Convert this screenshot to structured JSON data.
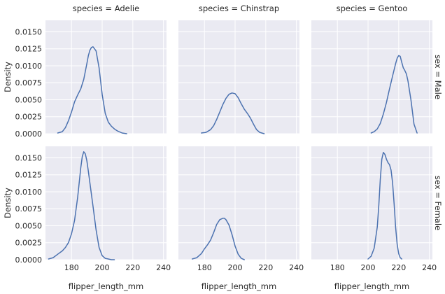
{
  "chart_data": {
    "type": "line",
    "kind": "kde facet grid",
    "xlabel": "flipper_length_mm",
    "ylabel": "Density",
    "xlim": [
      163,
      242
    ],
    "ylim": [
      0,
      0.0167
    ],
    "xticks": [
      180,
      200,
      220,
      240
    ],
    "yticks": [
      "0.0000",
      "0.0025",
      "0.0050",
      "0.0075",
      "0.0100",
      "0.0125",
      "0.0150"
    ],
    "grid": true,
    "col_titles": [
      "species = Adelie",
      "species = Chinstrap",
      "species = Gentoo"
    ],
    "row_titles": [
      "sex = Male",
      "sex = Female"
    ],
    "panels": [
      {
        "row": 0,
        "col": 0,
        "x": [
          171,
          174,
          176,
          178,
          180,
          182,
          184,
          186,
          188,
          190,
          191,
          192,
          193,
          194,
          196,
          198,
          200,
          202,
          204,
          206,
          208,
          210,
          213,
          216
        ],
        "y": [
          0.0001,
          0.0003,
          0.0009,
          0.0019,
          0.0032,
          0.0047,
          0.0057,
          0.0066,
          0.008,
          0.0103,
          0.0115,
          0.0123,
          0.0127,
          0.0128,
          0.0122,
          0.0097,
          0.0058,
          0.003,
          0.0017,
          0.0011,
          0.0007,
          0.0004,
          0.0001,
          0.0
        ]
      },
      {
        "row": 0,
        "col": 1,
        "x": [
          178,
          181,
          184,
          186,
          188,
          190,
          192,
          194,
          196,
          198,
          200,
          202,
          204,
          206,
          208,
          210,
          212,
          214,
          216,
          219
        ],
        "y": [
          0.0001,
          0.0002,
          0.0006,
          0.0012,
          0.0021,
          0.0032,
          0.0043,
          0.0052,
          0.0058,
          0.006,
          0.0059,
          0.0053,
          0.0044,
          0.0036,
          0.003,
          0.0023,
          0.0014,
          0.0006,
          0.0002,
          0.0
        ]
      },
      {
        "row": 0,
        "col": 2,
        "x": [
          202,
          204,
          206,
          208,
          210,
          212,
          214,
          216,
          218,
          219,
          220,
          221,
          222,
          223,
          224,
          225,
          226,
          228,
          230,
          232
        ],
        "y": [
          0.0001,
          0.0003,
          0.0007,
          0.0015,
          0.0029,
          0.0046,
          0.0066,
          0.0085,
          0.0103,
          0.0111,
          0.0115,
          0.0114,
          0.0105,
          0.0097,
          0.0093,
          0.0088,
          0.0078,
          0.005,
          0.0014,
          0.0001
        ]
      },
      {
        "row": 1,
        "col": 0,
        "x": [
          165,
          168,
          171,
          174,
          176,
          178,
          180,
          182,
          184,
          186,
          187,
          188,
          189,
          190,
          191,
          192,
          194,
          196,
          198,
          200,
          202,
          204,
          206,
          208
        ],
        "y": [
          0.0001,
          0.0003,
          0.0008,
          0.0013,
          0.0018,
          0.0025,
          0.0038,
          0.0058,
          0.0092,
          0.0135,
          0.0152,
          0.0159,
          0.0156,
          0.0146,
          0.013,
          0.0113,
          0.0079,
          0.0044,
          0.0018,
          0.0006,
          0.0002,
          0.0001,
          0.0,
          0.0
        ]
      },
      {
        "row": 1,
        "col": 1,
        "x": [
          172,
          175,
          178,
          180,
          182,
          184,
          186,
          188,
          190,
          192,
          193,
          194,
          196,
          198,
          200,
          202,
          204,
          206
        ],
        "y": [
          0.0001,
          0.0003,
          0.0009,
          0.0016,
          0.0022,
          0.0029,
          0.004,
          0.0052,
          0.0059,
          0.0061,
          0.0061,
          0.0059,
          0.0051,
          0.0037,
          0.002,
          0.0008,
          0.0002,
          0.0
        ]
      },
      {
        "row": 1,
        "col": 2,
        "x": [
          200,
          202,
          204,
          206,
          207,
          208,
          209,
          210,
          211,
          212,
          213,
          214,
          215,
          216,
          217,
          218,
          219,
          220,
          221,
          222
        ],
        "y": [
          0.0001,
          0.0005,
          0.0017,
          0.0048,
          0.008,
          0.0118,
          0.0148,
          0.0158,
          0.0155,
          0.0148,
          0.0143,
          0.014,
          0.0132,
          0.0113,
          0.0082,
          0.0048,
          0.0023,
          0.0009,
          0.0003,
          0.0001
        ]
      }
    ]
  }
}
